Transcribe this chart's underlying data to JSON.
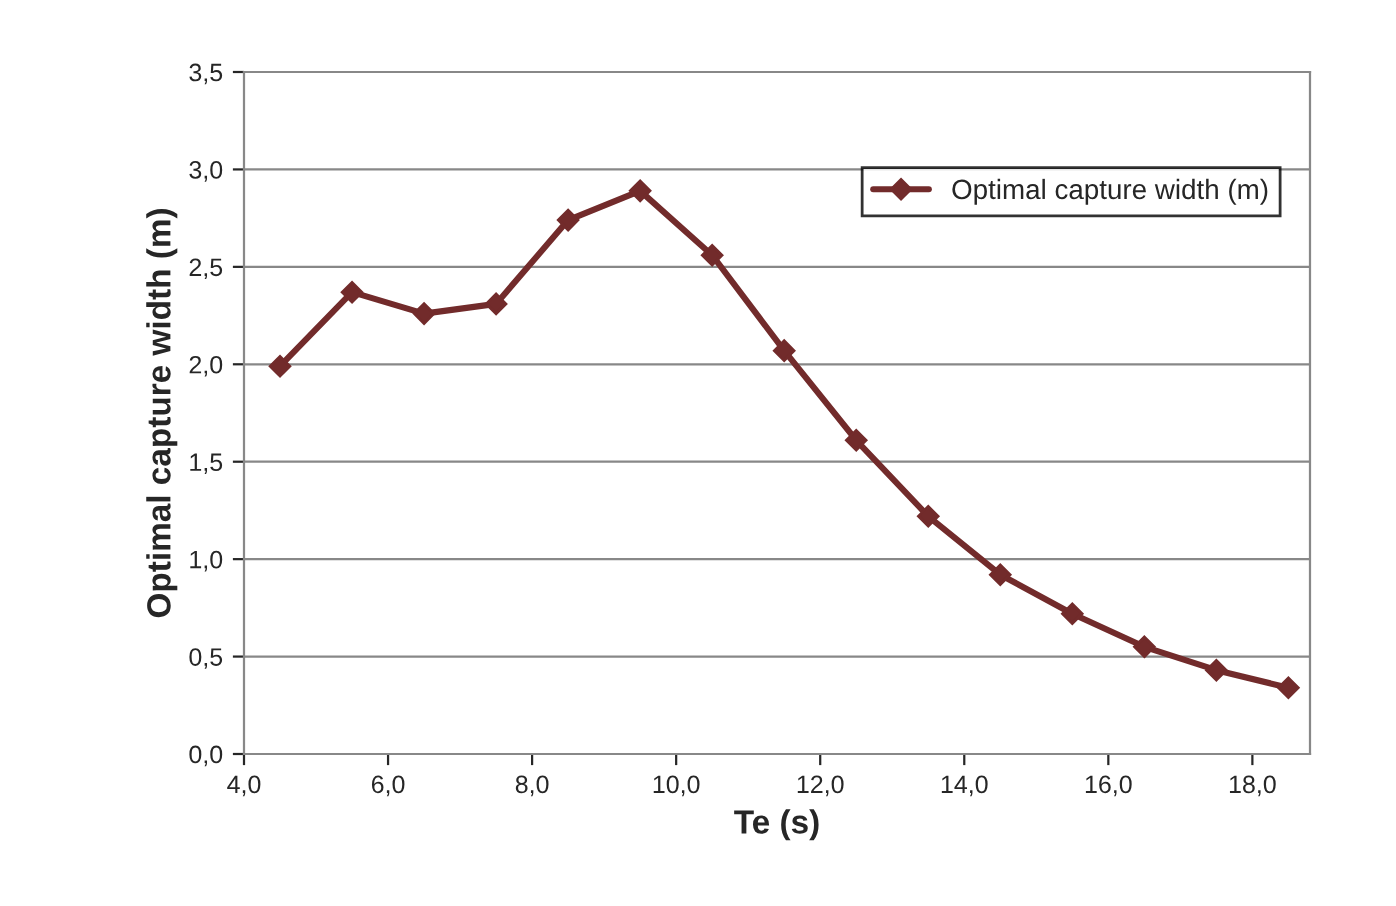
{
  "chart_data": {
    "type": "line",
    "xlabel": "Te (s)",
    "ylabel": "Optimal capture width (m)",
    "x": [
      4.5,
      5.5,
      6.5,
      7.5,
      8.5,
      9.5,
      10.5,
      11.5,
      12.5,
      13.5,
      14.5,
      15.5,
      16.5,
      17.5,
      18.5
    ],
    "series": [
      {
        "name": "Optimal capture width (m)",
        "color": "#722b2b",
        "values": [
          1.99,
          2.37,
          2.26,
          2.31,
          2.74,
          2.89,
          2.56,
          2.07,
          1.61,
          1.22,
          0.92,
          0.72,
          0.55,
          0.43,
          0.34
        ]
      }
    ],
    "xlim": [
      4,
      18.8
    ],
    "xticks": [
      {
        "value": 4,
        "label": "4,0"
      },
      {
        "value": 6,
        "label": "6,0"
      },
      {
        "value": 8,
        "label": "8,0"
      },
      {
        "value": 10,
        "label": "10,0"
      },
      {
        "value": 12,
        "label": "12,0"
      },
      {
        "value": 14,
        "label": "14,0"
      },
      {
        "value": 16,
        "label": "16,0"
      },
      {
        "value": 18,
        "label": "18,0"
      }
    ],
    "ylim": [
      0,
      3.5
    ],
    "yticks": [
      {
        "value": 0,
        "label": "0,0"
      },
      {
        "value": 0.5,
        "label": "0,5"
      },
      {
        "value": 1,
        "label": "1,0"
      },
      {
        "value": 1.5,
        "label": "1,5"
      },
      {
        "value": 2,
        "label": "2,0"
      },
      {
        "value": 2.5,
        "label": "2,5"
      },
      {
        "value": 3,
        "label": "3,0"
      },
      {
        "value": 3.5,
        "label": "3,5"
      }
    ],
    "grid": "y",
    "legend": "top right",
    "marker": "diamond",
    "line_style": "solid"
  }
}
